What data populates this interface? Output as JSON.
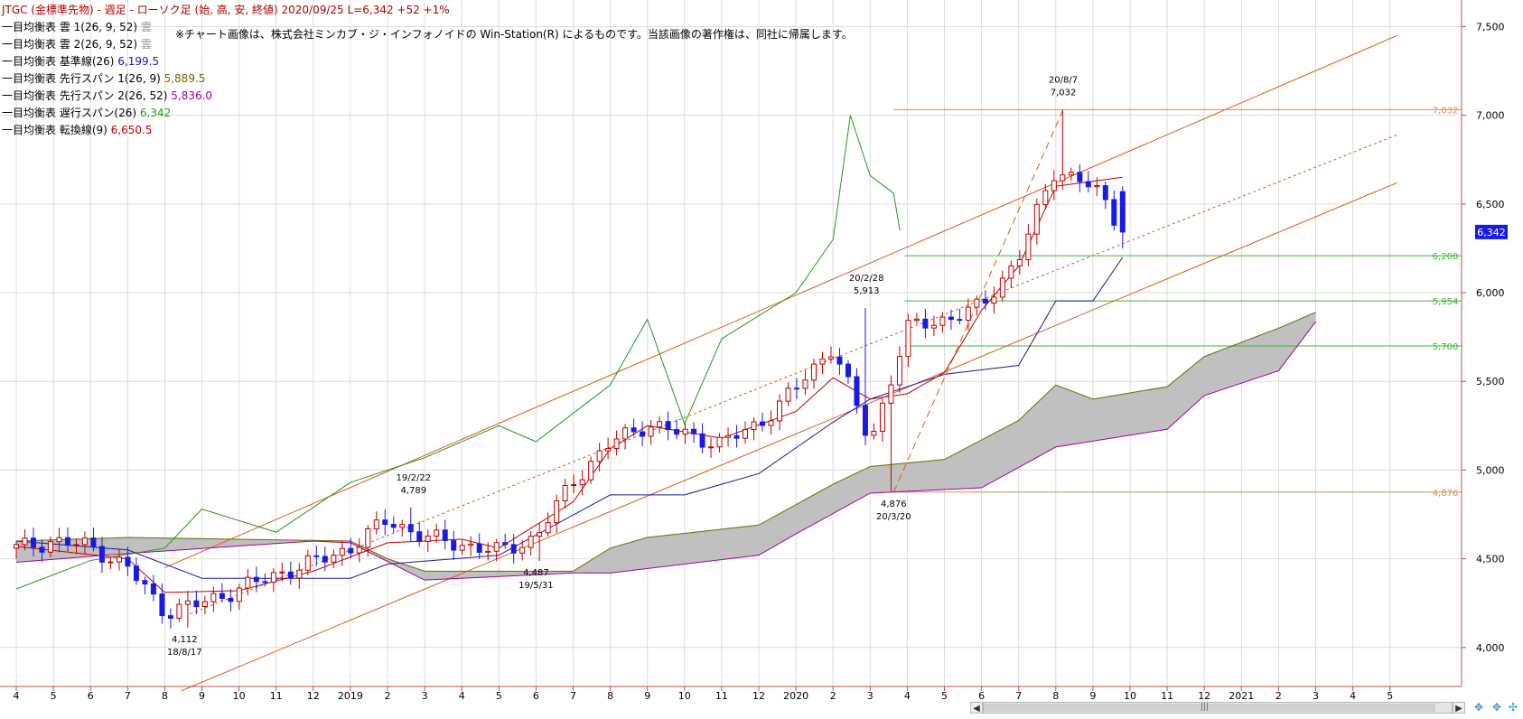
{
  "legend": {
    "title": "JTGC (金標準先物) - 週足 - ローソク足 (始, 高, 安, 終値)  2020/09/25 L=6,342 +52  +1%",
    "items": [
      {
        "label": "一目均衡表 雲 1(26, 9, 52)",
        "value": "雲",
        "color": "#999999"
      },
      {
        "label": "一目均衡表 雲 2(26, 9, 52)",
        "value": "雲",
        "color": "#999999"
      },
      {
        "label": "一目均衡表 基準線(26)",
        "value": "6,199.5",
        "color": "#1a1aa0"
      },
      {
        "label": "一目均衡表 先行スパン 1(26, 9)",
        "value": "5,889.5",
        "color": "#6b6b00"
      },
      {
        "label": "一目均衡表 先行スパン 2(26, 52)",
        "value": "5,836.0",
        "color": "#a000a0"
      },
      {
        "label": "一目均衡表 遅行スパン(26)",
        "value": "6,342",
        "color": "#1f9a1f"
      },
      {
        "label": "一目均衡表 転換線(9)",
        "value": "6,650.5",
        "color": "#c00000"
      }
    ]
  },
  "notice": "※チャート画像は、株式会社ミンカブ・ジ・インフォノイドの Win-Station(R) によるものです。当該画像の著作権は、同社に帰属します。",
  "colors": {
    "up": "#c00000",
    "down": "#1a1ae6",
    "kijun": "#1a1aa0",
    "tenkan": "#c00000",
    "chikou": "#1f9a1f",
    "span1": "#6b6b00",
    "span2": "#a000a0",
    "kumo_up": "#c0c0c0",
    "kumo_down": "#606060",
    "channel": "#e0581a",
    "hline_orange": "#e08a50",
    "hline_green": "#3cb43c",
    "grid": "#dcdcdc"
  },
  "chart_data": {
    "type": "candlestick",
    "title": "JTGC (金標準先物) - 週足",
    "yticks": [
      "4,000",
      "4,500",
      "5,000",
      "5,500",
      "6,000",
      "6,500",
      "7,000",
      "7,500"
    ],
    "ytick_values": [
      4000,
      4500,
      5000,
      5500,
      6000,
      6500,
      7000,
      7500
    ],
    "ylim": [
      3780,
      7650
    ],
    "x_months": [
      "4",
      "5",
      "6",
      "7",
      "8",
      "9",
      "10",
      "11",
      "12",
      "2019",
      "2",
      "3",
      "4",
      "5",
      "6",
      "7",
      "8",
      "9",
      "10",
      "11",
      "12",
      "2020",
      "2",
      "3",
      "4",
      "5",
      "6",
      "7",
      "8",
      "9",
      "10",
      "11",
      "12",
      "2021",
      "2",
      "3",
      "4",
      "5"
    ],
    "x_start": "2018-04",
    "last_price": {
      "label": "6,342",
      "value": 6342
    },
    "hlines": [
      {
        "value": 7032,
        "label": "7,032",
        "color": "orange"
      },
      {
        "value": 6208,
        "label": "6,208",
        "color": "green"
      },
      {
        "value": 5954,
        "label": "5,954",
        "color": "green"
      },
      {
        "value": 5700,
        "label": "5,700",
        "color": "green"
      },
      {
        "value": 4876,
        "label": "4,876",
        "color": "orange"
      }
    ],
    "annotations": [
      {
        "date": "18/8/17",
        "price": "4,112",
        "value": 4112,
        "pos": "below"
      },
      {
        "date": "19/2/22",
        "price": "4,789",
        "value": 4789,
        "pos": "above"
      },
      {
        "date": "19/5/31",
        "price": "4,487",
        "value": 4487,
        "pos": "below"
      },
      {
        "date": "20/2/28",
        "price": "5,913",
        "value": 5913,
        "pos": "above"
      },
      {
        "date": "20/3/20",
        "price": "4,876",
        "value": 4876,
        "pos": "below"
      },
      {
        "date": "20/8/7",
        "price": "7,032",
        "value": 7032,
        "pos": "above"
      }
    ],
    "channel": {
      "start": "2018-08",
      "end": "2021-05",
      "upper": [
        4450,
        7450
      ],
      "middle": [
        4190,
        6890
      ],
      "lower": [
        3755,
        6620
      ]
    },
    "anchors": [
      {
        "month": "2018-04",
        "price": 4560
      },
      {
        "month": "2018-05",
        "price": 4600
      },
      {
        "month": "2018-06",
        "price": 4570
      },
      {
        "month": "2018-07",
        "price": 4450
      },
      {
        "month": "2018-08",
        "price": 4200
      },
      {
        "month": "2018-09",
        "price": 4250
      },
      {
        "month": "2018-10",
        "price": 4330
      },
      {
        "month": "2018-11",
        "price": 4410
      },
      {
        "month": "2018-12",
        "price": 4480
      },
      {
        "month": "2019-01",
        "price": 4560
      },
      {
        "month": "2019-02",
        "price": 4720
      },
      {
        "month": "2019-03",
        "price": 4620
      },
      {
        "month": "2019-04",
        "price": 4580
      },
      {
        "month": "2019-05",
        "price": 4540
      },
      {
        "month": "2019-06",
        "price": 4620
      },
      {
        "month": "2019-07",
        "price": 4940
      },
      {
        "month": "2019-08",
        "price": 5150
      },
      {
        "month": "2019-09",
        "price": 5260
      },
      {
        "month": "2019-10",
        "price": 5200
      },
      {
        "month": "2019-11",
        "price": 5150
      },
      {
        "month": "2019-12",
        "price": 5260
      },
      {
        "month": "2020-01",
        "price": 5460
      },
      {
        "month": "2020-02",
        "price": 5700
      },
      {
        "month": "2020-03",
        "price": 5150
      },
      {
        "month": "2020-04",
        "price": 5800
      },
      {
        "month": "2020-05",
        "price": 5850
      },
      {
        "month": "2020-06",
        "price": 5920
      },
      {
        "month": "2020-07",
        "price": 6200
      },
      {
        "month": "2020-08",
        "price": 6700
      },
      {
        "month": "2020-09",
        "price": 6600
      },
      {
        "month": "2020-09-25",
        "price": 6342
      }
    ],
    "kijun": [
      {
        "month": "2018-04",
        "value": 4600
      },
      {
        "month": "2018-07",
        "value": 4550
      },
      {
        "month": "2018-09",
        "value": 4390
      },
      {
        "month": "2019-01",
        "value": 4390
      },
      {
        "month": "2019-02",
        "value": 4470
      },
      {
        "month": "2019-05",
        "value": 4520
      },
      {
        "month": "2019-08",
        "value": 4860
      },
      {
        "month": "2019-10",
        "value": 4860
      },
      {
        "month": "2019-12",
        "value": 4980
      },
      {
        "month": "2020-02",
        "value": 5270
      },
      {
        "month": "2020-03",
        "value": 5400
      },
      {
        "month": "2020-05",
        "value": 5540
      },
      {
        "month": "2020-07",
        "value": 5590
      },
      {
        "month": "2020-08",
        "value": 5954
      },
      {
        "month": "2020-09",
        "value": 5954
      },
      {
        "month": "2020-09-25",
        "value": 6199.5
      }
    ],
    "tenkan": [
      {
        "month": "2018-04",
        "value": 4570
      },
      {
        "month": "2018-07",
        "value": 4500
      },
      {
        "month": "2018-08",
        "value": 4310
      },
      {
        "month": "2018-10",
        "value": 4320
      },
      {
        "month": "2018-12",
        "value": 4430
      },
      {
        "month": "2019-02",
        "value": 4590
      },
      {
        "month": "2019-04",
        "value": 4610
      },
      {
        "month": "2019-05",
        "value": 4560
      },
      {
        "month": "2019-07",
        "value": 4820
      },
      {
        "month": "2019-08",
        "value": 5120
      },
      {
        "month": "2019-09",
        "value": 5250
      },
      {
        "month": "2019-11",
        "value": 5180
      },
      {
        "month": "2020-01",
        "value": 5330
      },
      {
        "month": "2020-02",
        "value": 5520
      },
      {
        "month": "2020-03",
        "value": 5400
      },
      {
        "month": "2020-04",
        "value": 5430
      },
      {
        "month": "2020-05",
        "value": 5550
      },
      {
        "month": "2020-06",
        "value": 5900
      },
      {
        "month": "2020-07",
        "value": 6150
      },
      {
        "month": "2020-08",
        "value": 6600
      },
      {
        "month": "2020-09-25",
        "value": 6650.5
      }
    ],
    "chikou": [
      {
        "month": "2018-04",
        "value": 4330
      },
      {
        "month": "2018-06",
        "value": 4490
      },
      {
        "month": "2018-08",
        "value": 4560
      },
      {
        "month": "2018-09",
        "value": 4780
      },
      {
        "month": "2018-11",
        "value": 4650
      },
      {
        "month": "2019-01",
        "value": 4930
      },
      {
        "month": "2019-03",
        "value": 5070
      },
      {
        "month": "2019-05",
        "value": 5250
      },
      {
        "month": "2019-06",
        "value": 5160
      },
      {
        "month": "2019-08",
        "value": 5480
      },
      {
        "month": "2019-09",
        "value": 5850
      },
      {
        "month": "2019-10",
        "value": 5260
      },
      {
        "month": "2019-11",
        "value": 5740
      },
      {
        "month": "2020-01",
        "value": 6000
      },
      {
        "month": "2020-02",
        "value": 6300
      },
      {
        "month": "2020-02-15",
        "value": 7000
      },
      {
        "month": "2020-03",
        "value": 6660
      },
      {
        "month": "2020-03-20",
        "value": 6560
      },
      {
        "month": "2020-03-25",
        "value": 6350
      }
    ],
    "span1": [
      {
        "month": "2018-04",
        "value": 4600
      },
      {
        "month": "2018-07",
        "value": 4620
      },
      {
        "month": "2019-01",
        "value": 4600
      },
      {
        "month": "2019-02",
        "value": 4500
      },
      {
        "month": "2019-03",
        "value": 4430
      },
      {
        "month": "2019-07",
        "value": 4430
      },
      {
        "month": "2019-08",
        "value": 4560
      },
      {
        "month": "2019-09",
        "value": 4620
      },
      {
        "month": "2019-12",
        "value": 4690
      },
      {
        "month": "2020-02",
        "value": 4920
      },
      {
        "month": "2020-03",
        "value": 5020
      },
      {
        "month": "2020-05",
        "value": 5060
      },
      {
        "month": "2020-07",
        "value": 5280
      },
      {
        "month": "2020-08",
        "value": 5480
      },
      {
        "month": "2020-09",
        "value": 5400
      },
      {
        "month": "2020-11",
        "value": 5470
      },
      {
        "month": "2020-12",
        "value": 5640
      },
      {
        "month": "2021-02",
        "value": 5800
      },
      {
        "month": "2021-03",
        "value": 5889.5
      }
    ],
    "span2": [
      {
        "month": "2018-04",
        "value": 4480
      },
      {
        "month": "2018-07",
        "value": 4530
      },
      {
        "month": "2018-12",
        "value": 4600
      },
      {
        "month": "2019-01",
        "value": 4590
      },
      {
        "month": "2019-03",
        "value": 4380
      },
      {
        "month": "2019-07",
        "value": 4420
      },
      {
        "month": "2019-08",
        "value": 4420
      },
      {
        "month": "2019-12",
        "value": 4520
      },
      {
        "month": "2020-01",
        "value": 4640
      },
      {
        "month": "2020-03",
        "value": 4870
      },
      {
        "month": "2020-06",
        "value": 4900
      },
      {
        "month": "2020-08",
        "value": 5130
      },
      {
        "month": "2020-11",
        "value": 5230
      },
      {
        "month": "2020-12",
        "value": 5420
      },
      {
        "month": "2021-02",
        "value": 5560
      },
      {
        "month": "2021-03",
        "value": 5836
      }
    ]
  }
}
